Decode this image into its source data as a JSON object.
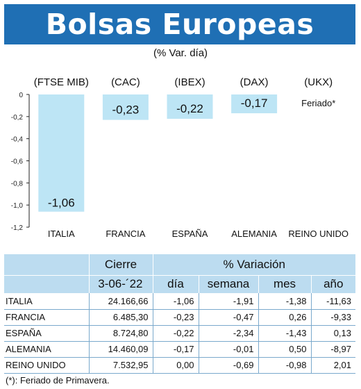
{
  "title": "Bolsas Europeas",
  "subtitle": "(% Var. día)",
  "chart_data": {
    "type": "bar",
    "categories": [
      "ITALIA",
      "FRANCIA",
      "ESPAÑA",
      "ALEMANIA",
      "REINO UNIDO"
    ],
    "index_labels": [
      "(FTSE MIB)",
      "(CAC)",
      "(IBEX)",
      "(DAX)",
      "(UKX)"
    ],
    "values": [
      -1.06,
      -0.23,
      -0.22,
      -0.17,
      null
    ],
    "value_labels": [
      "-1,06",
      "-0,23",
      "-0,22",
      "-0,17",
      "Feriado*"
    ],
    "ylim": [
      -1.2,
      0
    ],
    "yticks": [
      0,
      -0.2,
      -0.4,
      -0.6,
      -0.8,
      -1.0,
      -1.2
    ],
    "ytick_labels": [
      "0",
      "-0,2",
      "-0,4",
      "-0,6",
      "-0,8",
      "-1,0",
      "-1,2"
    ],
    "bar_color": "#bde5f5",
    "grid": false
  },
  "table": {
    "header_cierre": "Cierre",
    "header_variacion": "% Variación",
    "date": "3-06-´22",
    "col_dia": "día",
    "col_semana": "semana",
    "col_mes": "mes",
    "col_anio": "año",
    "rows": [
      {
        "pais": "ITALIA",
        "cierre": "24.166,66",
        "dia": "-1,06",
        "semana": "-1,91",
        "mes": "-1,38",
        "anio": "-11,63"
      },
      {
        "pais": "FRANCIA",
        "cierre": "6.485,30",
        "dia": "-0,23",
        "semana": "-0,47",
        "mes": "0,26",
        "anio": "-9,33"
      },
      {
        "pais": "ESPAÑA",
        "cierre": "8.724,80",
        "dia": "-0,22",
        "semana": "-2,34",
        "mes": "-1,43",
        "anio": "0,13"
      },
      {
        "pais": "ALEMANIA",
        "cierre": "14.460,09",
        "dia": "-0,17",
        "semana": "-0,01",
        "mes": "0,50",
        "anio": "-8,97"
      },
      {
        "pais": "REINO UNIDO",
        "cierre": "7.532,95",
        "dia": "0,00",
        "semana": "-0,69",
        "mes": "-0,98",
        "anio": "2,01"
      }
    ],
    "header_color": "#bcdcf0"
  },
  "footnote": "(*): Feriado de Primavera.",
  "colors": {
    "banner": "#1f6fb4",
    "bar": "#bde5f5"
  }
}
